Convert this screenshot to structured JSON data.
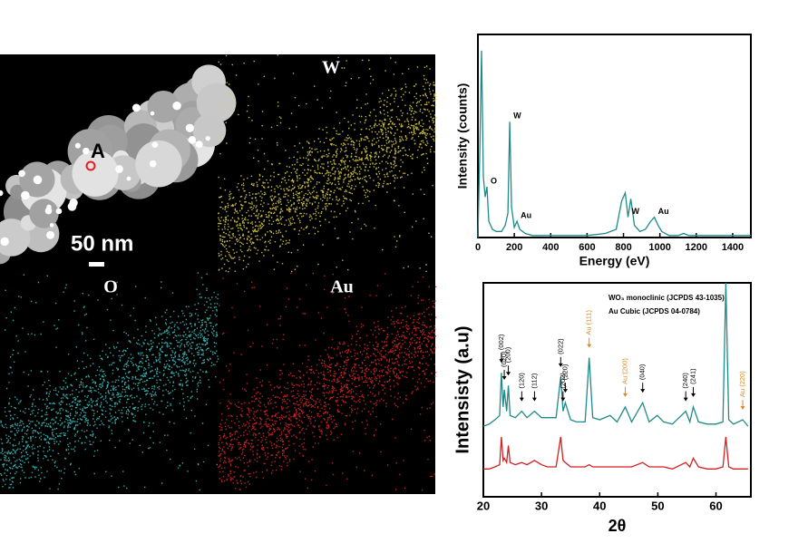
{
  "images": {
    "point_label": "A",
    "scale_bar": "50 nm",
    "maps": [
      "W",
      "O",
      "Au"
    ]
  },
  "chart_data": [
    {
      "type": "line",
      "xlabel": "Energy (eV)",
      "ylabel": "Intensity (counts)",
      "xlim": [
        0,
        1500
      ],
      "xticks": [
        0,
        200,
        400,
        600,
        800,
        1000,
        1200,
        1400
      ],
      "ylim": [
        0,
        100
      ],
      "x": [
        0,
        10,
        20,
        30,
        40,
        50,
        60,
        80,
        100,
        130,
        150,
        165,
        175,
        185,
        200,
        215,
        230,
        260,
        300,
        400,
        500,
        600,
        700,
        760,
        790,
        810,
        825,
        840,
        860,
        890,
        920,
        950,
        970,
        990,
        1010,
        1050,
        1100,
        1130,
        1160,
        1200,
        1300,
        1400,
        1500
      ],
      "series": [
        {
          "color": "#1f8a8a",
          "values": [
            0,
            40,
            92,
            30,
            20,
            25,
            8,
            4,
            3,
            3,
            6,
            12,
            57,
            15,
            5,
            8,
            4,
            2,
            1,
            1,
            1,
            1,
            2,
            4,
            18,
            22,
            10,
            19,
            6,
            3,
            4,
            8,
            10,
            6,
            3,
            1,
            1,
            2,
            1,
            1,
            1,
            1,
            1
          ]
        }
      ],
      "annotations": [
        {
          "text": "O",
          "x": 50
        },
        {
          "text": "W",
          "x": 175
        },
        {
          "text": "Au",
          "x": 215
        },
        {
          "text": "W",
          "x": 825
        },
        {
          "text": "Au",
          "x": 970
        }
      ]
    },
    {
      "type": "line",
      "xlabel": "2θ",
      "ylabel": "Intensisty (a.u)",
      "xlim": [
        20,
        66
      ],
      "xticks": [
        20,
        30,
        40,
        50,
        60
      ],
      "ylim": [
        0,
        100
      ],
      "notes": [
        "WO₃ monoclinic (JCPDS 43-1035)",
        "Au Cubic (JCPDS 04-0784)"
      ],
      "x": [
        20,
        21,
        22,
        22.8,
        23.1,
        23.4,
        23.6,
        24,
        24.3,
        24.6,
        25.5,
        26.6,
        27.5,
        28.8,
        30,
        31,
        32.5,
        33.3,
        33.7,
        34.1,
        35,
        36,
        37.5,
        38.2,
        38.8,
        40,
        41.8,
        43,
        44.4,
        45.5,
        47.4,
        48.5,
        49.9,
        51,
        52.5,
        54.8,
        55.5,
        56.1,
        57,
        58.5,
        60,
        61.2,
        61.7,
        62.2,
        63,
        64.6,
        65.5
      ],
      "series": [
        {
          "color": "#1f8a8a",
          "values": [
            33,
            34,
            36,
            38,
            58,
            42,
            50,
            40,
            52,
            38,
            37,
            40,
            37,
            40,
            37,
            37,
            37,
            56,
            40,
            44,
            36,
            35,
            35,
            65,
            37,
            36,
            38,
            35,
            42,
            35,
            44,
            35,
            38,
            35,
            34,
            40,
            35,
            42,
            35,
            34,
            34,
            35,
            100,
            36,
            34,
            36,
            33
          ]
        },
        {
          "color": "#d42020",
          "values": [
            13,
            13,
            14,
            15,
            28,
            17,
            18,
            16,
            24,
            16,
            15,
            16,
            15,
            17,
            15,
            14,
            14,
            28,
            17,
            16,
            14,
            14,
            14,
            15,
            14,
            14,
            14,
            14,
            14,
            14,
            16,
            14,
            14,
            14,
            13,
            16,
            14,
            18,
            14,
            13,
            13,
            14,
            28,
            14,
            13,
            13,
            13
          ]
        }
      ],
      "annotations": [
        {
          "text": "(002)",
          "x": 23.1,
          "color": "#000000"
        },
        {
          "text": "(020)",
          "x": 23.6,
          "color": "#000000"
        },
        {
          "text": "(200)",
          "x": 24.3,
          "color": "#000000"
        },
        {
          "text": "(120)",
          "x": 26.6,
          "color": "#000000"
        },
        {
          "text": "(112)",
          "x": 28.8,
          "color": "#000000"
        },
        {
          "text": "(022)",
          "x": 33.3,
          "color": "#000000"
        },
        {
          "text": "(202)",
          "x": 33.7,
          "color": "#000000"
        },
        {
          "text": "(220)",
          "x": 34.1,
          "color": "#000000"
        },
        {
          "text": "Au (111)",
          "x": 38.2,
          "color": "#e08a1e"
        },
        {
          "text": "Au (200)",
          "x": 44.4,
          "color": "#e08a1e"
        },
        {
          "text": "(040)",
          "x": 47.4,
          "color": "#000000"
        },
        {
          "text": "(240)",
          "x": 54.8,
          "color": "#000000"
        },
        {
          "text": "(241)",
          "x": 56.1,
          "color": "#000000"
        },
        {
          "text": "Au (220)",
          "x": 64.6,
          "color": "#e08a1e"
        }
      ]
    }
  ]
}
